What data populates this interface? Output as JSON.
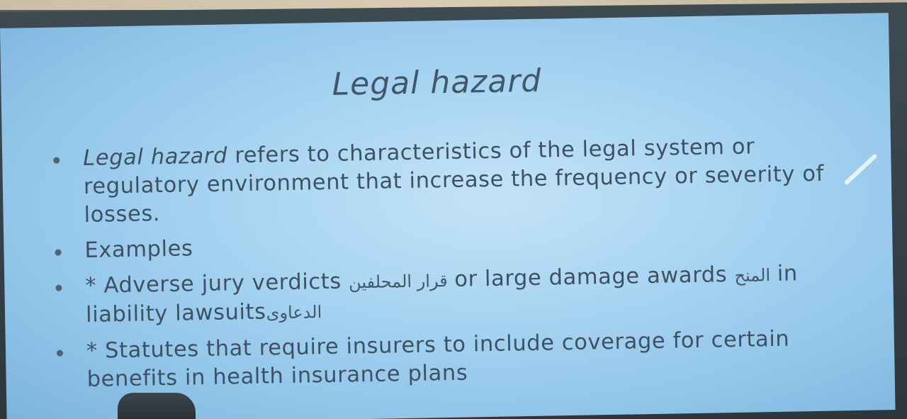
{
  "slide": {
    "title": "Legal hazard",
    "bullet1": {
      "term": "Legal hazard",
      "text": " refers to characteristics of the legal system or regulatory environment that increase the frequency or severity of losses."
    },
    "bullet2": "Examples",
    "bullet3": {
      "part1": "* Adverse jury verdicts ",
      "arabic1": "قرار المحلفين",
      "part2": " or large damage awards ",
      "arabic2": "المنح",
      "part3": " in liability lawsuits",
      "arabic3": "الدعاوى"
    },
    "bullet4": "* Statutes that require insurers to include coverage for certain benefits in health insurance plans"
  },
  "colors": {
    "screen": "#a6d3f1",
    "text": "#3e5163",
    "title": "#43576a"
  }
}
